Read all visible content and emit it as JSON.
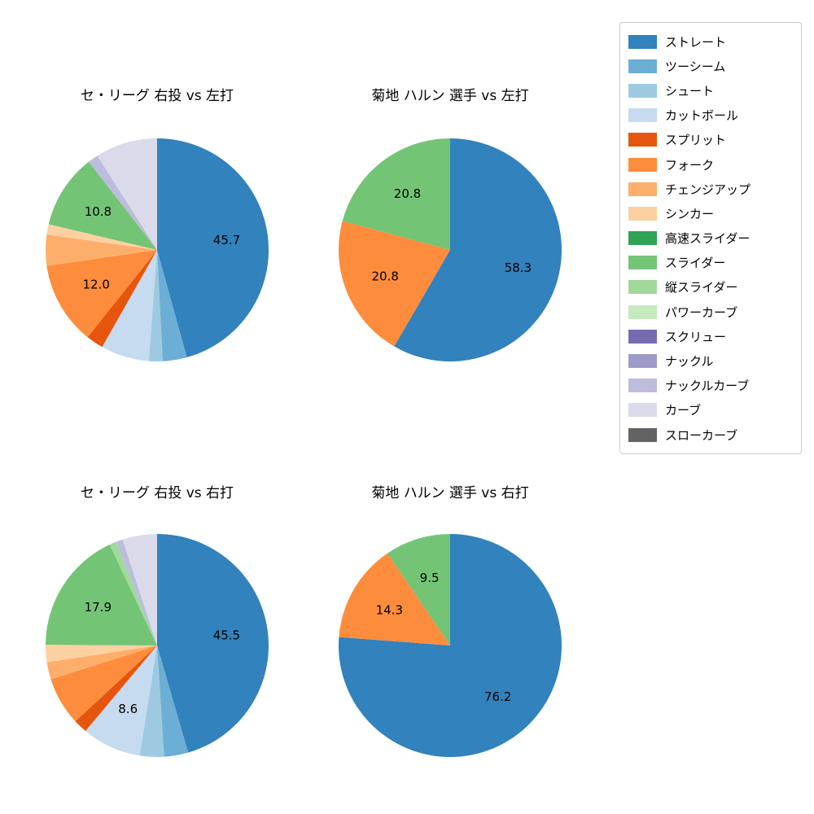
{
  "page": {
    "background": "#ffffff"
  },
  "legend": {
    "items": [
      {
        "label": "ストレート",
        "color": "#3182bd"
      },
      {
        "label": "ツーシーム",
        "color": "#6baed6"
      },
      {
        "label": "シュート",
        "color": "#9ecae1"
      },
      {
        "label": "カットボール",
        "color": "#c6dbef"
      },
      {
        "label": "スプリット",
        "color": "#e6550d"
      },
      {
        "label": "フォーク",
        "color": "#fd8d3c"
      },
      {
        "label": "チェンジアップ",
        "color": "#fdae6b"
      },
      {
        "label": "シンカー",
        "color": "#fdd0a2"
      },
      {
        "label": "高速スライダー",
        "color": "#31a354"
      },
      {
        "label": "スライダー",
        "color": "#74c476"
      },
      {
        "label": "縦スライダー",
        "color": "#a1d99b"
      },
      {
        "label": "パワーカーブ",
        "color": "#c7e9c0"
      },
      {
        "label": "スクリュー",
        "color": "#756bb1"
      },
      {
        "label": "ナックル",
        "color": "#9e9ac8"
      },
      {
        "label": "ナックルカーブ",
        "color": "#bcbddc"
      },
      {
        "label": "カーブ",
        "color": "#dadaeb"
      },
      {
        "label": "スローカーブ",
        "color": "#636363"
      }
    ]
  },
  "chart_data": [
    {
      "type": "pie",
      "title": "セ・リーグ 右投 vs 左打",
      "start_angle": "top",
      "direction": "clockwise",
      "slices": [
        {
          "name": "ストレート",
          "value": 45.7,
          "label": "45.7"
        },
        {
          "name": "ツーシーム",
          "value": 3.5
        },
        {
          "name": "シュート",
          "value": 2.0
        },
        {
          "name": "カットボール",
          "value": 7.0
        },
        {
          "name": "スプリット",
          "value": 2.5
        },
        {
          "name": "フォーク",
          "value": 12.0,
          "label": "12.0"
        },
        {
          "name": "チェンジアップ",
          "value": 4.5
        },
        {
          "name": "シンカー",
          "value": 1.5
        },
        {
          "name": "スライダー",
          "value": 10.8,
          "label": "10.8"
        },
        {
          "name": "ナックルカーブ",
          "value": 1.5
        },
        {
          "name": "カーブ",
          "value": 9.0
        }
      ]
    },
    {
      "type": "pie",
      "title": "菊地 ハルン 選手 vs 左打",
      "start_angle": "top",
      "direction": "clockwise",
      "slices": [
        {
          "name": "ストレート",
          "value": 58.3,
          "label": "58.3"
        },
        {
          "name": "フォーク",
          "value": 20.8,
          "label": "20.8"
        },
        {
          "name": "スライダー",
          "value": 20.8,
          "label": "20.8"
        }
      ]
    },
    {
      "type": "pie",
      "title": "セ・リーグ 右投 vs 右打",
      "start_angle": "top",
      "direction": "clockwise",
      "slices": [
        {
          "name": "ストレート",
          "value": 45.5,
          "label": "45.5"
        },
        {
          "name": "ツーシーム",
          "value": 3.5
        },
        {
          "name": "シュート",
          "value": 3.5
        },
        {
          "name": "カットボール",
          "value": 8.6,
          "label": "8.6"
        },
        {
          "name": "スプリット",
          "value": 2.0
        },
        {
          "name": "フォーク",
          "value": 7.0
        },
        {
          "name": "チェンジアップ",
          "value": 2.5
        },
        {
          "name": "シンカー",
          "value": 2.5
        },
        {
          "name": "スライダー",
          "value": 17.9,
          "label": "17.9"
        },
        {
          "name": "縦スライダー",
          "value": 1.0
        },
        {
          "name": "ナックルカーブ",
          "value": 1.0
        },
        {
          "name": "カーブ",
          "value": 5.0
        }
      ]
    },
    {
      "type": "pie",
      "title": "菊地 ハルン 選手 vs 右打",
      "start_angle": "top",
      "direction": "clockwise",
      "slices": [
        {
          "name": "ストレート",
          "value": 76.2,
          "label": "76.2"
        },
        {
          "name": "フォーク",
          "value": 14.3,
          "label": "14.3"
        },
        {
          "name": "スライダー",
          "value": 9.5,
          "label": "9.5"
        }
      ]
    }
  ]
}
